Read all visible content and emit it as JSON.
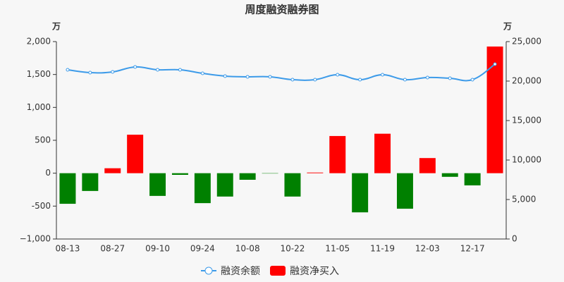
{
  "chart_data": {
    "type": "combo",
    "title": "周度融资融券图",
    "y_unit": "万",
    "y2_unit": "万",
    "categories": [
      "08-13",
      null,
      "08-27",
      null,
      "09-10",
      null,
      "09-24",
      null,
      "10-08",
      null,
      "10-22",
      null,
      "11-05",
      null,
      "11-19",
      null,
      "12-03",
      null,
      "12-17",
      null
    ],
    "series": [
      {
        "name": "融资余额",
        "type": "line",
        "axis": "y2",
        "color": "#3d9be9",
        "values": [
          21430,
          21070,
          21160,
          21790,
          21430,
          21430,
          20980,
          20630,
          20540,
          20540,
          20180,
          20180,
          20800,
          20180,
          20800,
          20180,
          20450,
          20360,
          20180,
          22140
        ]
      },
      {
        "name": "融资净买入",
        "type": "bar",
        "color": "#ff0000",
        "negative_color": "#008000",
        "values": [
          -465,
          -270,
          75,
          585,
          -345,
          -25,
          -455,
          -355,
          -100,
          -5,
          -355,
          10,
          565,
          -595,
          600,
          -540,
          230,
          -55,
          -185,
          1925
        ]
      }
    ],
    "ylim": [
      -1000,
      2000
    ],
    "yticks": [
      {
        "value": -1000,
        "label": "−1,000"
      },
      -500,
      0,
      500,
      {
        "value": 1000,
        "label": "1,000"
      },
      {
        "value": 1500,
        "label": "1,500"
      },
      {
        "value": 2000,
        "label": "2,000"
      }
    ],
    "y2lim": [
      0,
      25000
    ],
    "y2ticks": [
      0,
      {
        "value": 5000,
        "label": "5,000"
      },
      {
        "value": 10000,
        "label": "10,000"
      },
      {
        "value": 15000,
        "label": "15,000"
      },
      {
        "value": 20000,
        "label": "20,000"
      },
      {
        "value": 25000,
        "label": "25,000"
      }
    ],
    "grid": false
  }
}
